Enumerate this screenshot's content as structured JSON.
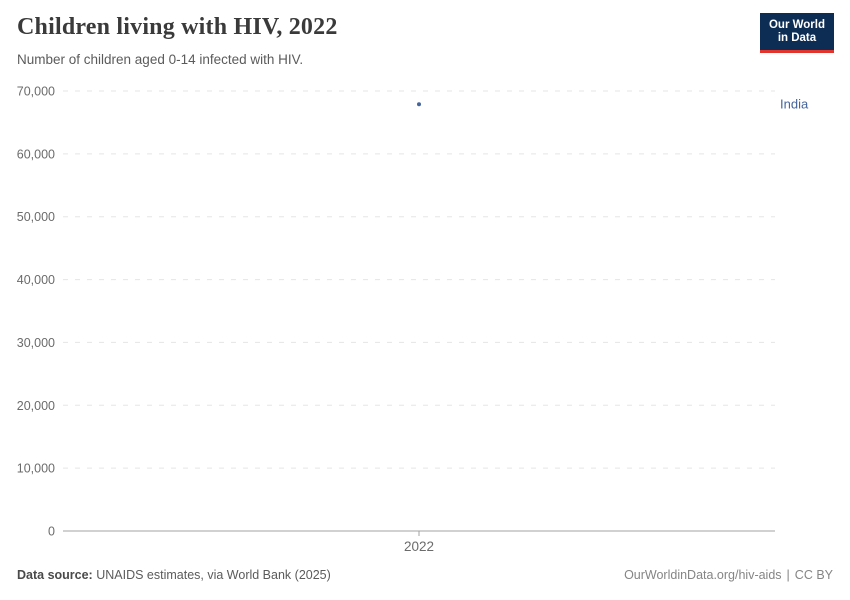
{
  "header": {
    "title": "Children living with HIV, 2022",
    "subtitle": "Number of children aged 0-14 infected with HIV."
  },
  "logo": {
    "line1": "Our World",
    "line2": "in Data"
  },
  "chart_data": {
    "type": "scatter",
    "title": "Children living with HIV, 2022",
    "xlabel": "",
    "ylabel": "",
    "x_ticks": [
      2022
    ],
    "y_ticks": [
      0,
      10000,
      20000,
      30000,
      40000,
      50000,
      60000,
      70000
    ],
    "ylim": [
      0,
      70000
    ],
    "grid": "horizontal-dashed",
    "legend_position": "right-of-point",
    "series": [
      {
        "name": "India",
        "x": [
          2022
        ],
        "y": [
          67900
        ],
        "color": "#44659c"
      }
    ]
  },
  "footer": {
    "source_label": "Data source:",
    "source_text": " UNAIDS estimates, via World Bank (2025)",
    "link_text": "OurWorldinData.org/hiv-aids",
    "separator": "|",
    "license_text": "CC BY"
  },
  "colors": {
    "gridline": "#e5e5e5",
    "axis": "#a3a3a3",
    "tick_text": "#6b6b6b",
    "logo_bg": "#0d2d55",
    "logo_accent": "#e0342c",
    "point": "#44659c"
  }
}
